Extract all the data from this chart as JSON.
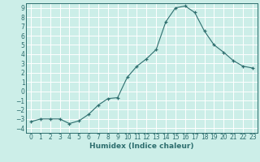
{
  "x": [
    0,
    1,
    2,
    3,
    4,
    5,
    6,
    7,
    8,
    9,
    10,
    11,
    12,
    13,
    14,
    15,
    16,
    17,
    18,
    19,
    20,
    21,
    22,
    23
  ],
  "y": [
    -3.3,
    -3.0,
    -3.0,
    -3.0,
    -3.5,
    -3.2,
    -2.5,
    -1.5,
    -0.8,
    -0.7,
    1.5,
    2.7,
    3.5,
    4.5,
    7.5,
    9.0,
    9.2,
    8.5,
    6.5,
    5.0,
    4.2,
    3.3,
    2.7,
    2.5
  ],
  "xlabel": "Humidex (Indice chaleur)",
  "ylim": [
    -4.5,
    9.5
  ],
  "xlim": [
    -0.5,
    23.5
  ],
  "line_color": "#2d6e6e",
  "marker": "+",
  "bg_color": "#cceee8",
  "grid_color": "#ffffff",
  "tick_color": "#2d6e6e",
  "label_color": "#2d6e6e",
  "yticks": [
    -4,
    -3,
    -2,
    -1,
    0,
    1,
    2,
    3,
    4,
    5,
    6,
    7,
    8,
    9
  ],
  "xticks": [
    0,
    1,
    2,
    3,
    4,
    5,
    6,
    7,
    8,
    9,
    10,
    11,
    12,
    13,
    14,
    15,
    16,
    17,
    18,
    19,
    20,
    21,
    22,
    23
  ],
  "xlabel_fontsize": 6.5,
  "tick_fontsize": 5.5
}
